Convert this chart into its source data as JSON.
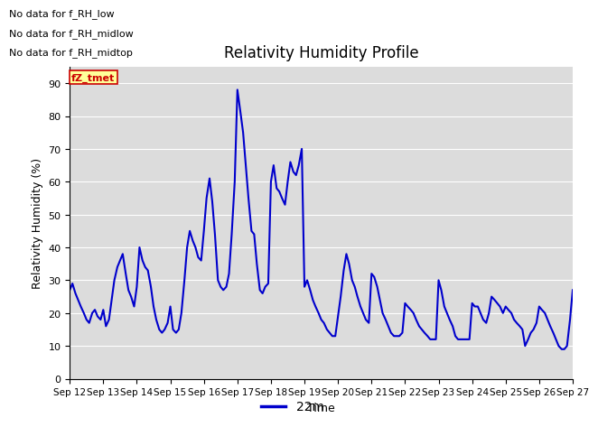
{
  "title": "Relativity Humidity Profile",
  "xlabel": "Time",
  "ylabel": "Relativity Humidity (%)",
  "ylim": [
    0,
    95
  ],
  "yticks": [
    0,
    10,
    20,
    30,
    40,
    50,
    60,
    70,
    80,
    90
  ],
  "line_color": "#0000CC",
  "line_width": 1.5,
  "legend_label": "22m",
  "legend_color": "#0000CC",
  "no_data_texts": [
    "No data for f_RH_low",
    "No data for f_RH_midlow",
    "No data for f_RH_midtop"
  ],
  "fz_tmet_label": "fZ_tmet",
  "fz_tmet_color": "#CC0000",
  "fz_tmet_bg": "#FFFF99",
  "background_color": "#DCDCDC",
  "xtick_labels": [
    "Sep 12",
    "Sep 13",
    "Sep 14",
    "Sep 15",
    "Sep 16",
    "Sep 17",
    "Sep 18",
    "Sep 19",
    "Sep 20",
    "Sep 21",
    "Sep 22",
    "Sep 23",
    "Sep 24",
    "Sep 25",
    "Sep 26",
    "Sep 27"
  ],
  "x_values": [
    12.0,
    12.08,
    12.17,
    12.25,
    12.33,
    12.42,
    12.5,
    12.58,
    12.67,
    12.75,
    12.83,
    12.92,
    13.0,
    13.08,
    13.17,
    13.25,
    13.33,
    13.42,
    13.5,
    13.58,
    13.67,
    13.75,
    13.83,
    13.92,
    14.0,
    14.08,
    14.17,
    14.25,
    14.33,
    14.42,
    14.5,
    14.58,
    14.67,
    14.75,
    14.83,
    14.92,
    15.0,
    15.08,
    15.17,
    15.25,
    15.33,
    15.42,
    15.5,
    15.58,
    15.67,
    15.75,
    15.83,
    15.92,
    16.0,
    16.08,
    16.17,
    16.25,
    16.33,
    16.42,
    16.5,
    16.58,
    16.67,
    16.75,
    16.83,
    16.92,
    17.0,
    17.08,
    17.17,
    17.25,
    17.33,
    17.42,
    17.5,
    17.58,
    17.67,
    17.75,
    17.83,
    17.92,
    18.0,
    18.08,
    18.17,
    18.25,
    18.33,
    18.42,
    18.5,
    18.58,
    18.67,
    18.75,
    18.83,
    18.92,
    19.0,
    19.08,
    19.17,
    19.25,
    19.33,
    19.42,
    19.5,
    19.58,
    19.67,
    19.75,
    19.83,
    19.92,
    20.0,
    20.08,
    20.17,
    20.25,
    20.33,
    20.42,
    20.5,
    20.58,
    20.67,
    20.75,
    20.83,
    20.92,
    21.0,
    21.08,
    21.17,
    21.25,
    21.33,
    21.42,
    21.5,
    21.58,
    21.67,
    21.75,
    21.83,
    21.92,
    22.0,
    22.08,
    22.17,
    22.25,
    22.33,
    22.42,
    22.5,
    22.58,
    22.67,
    22.75,
    22.83,
    22.92,
    23.0,
    23.08,
    23.17,
    23.25,
    23.33,
    23.42,
    23.5,
    23.58,
    23.67,
    23.75,
    23.83,
    23.92,
    24.0,
    24.08,
    24.17,
    24.25,
    24.33,
    24.42,
    24.5,
    24.58,
    24.67,
    24.75,
    24.83,
    24.92,
    25.0,
    25.08,
    25.17,
    25.25,
    25.33,
    25.42,
    25.5,
    25.58,
    25.67,
    25.75,
    25.83,
    25.92,
    26.0,
    26.08,
    26.17,
    26.25,
    26.33,
    26.42,
    26.5,
    26.58,
    26.67,
    26.75,
    26.83,
    26.92,
    27.0
  ],
  "y_values": [
    27,
    29,
    26,
    24,
    22,
    20,
    18,
    17,
    20,
    21,
    19,
    18,
    21,
    16,
    18,
    24,
    30,
    34,
    36,
    38,
    32,
    27,
    25,
    22,
    28,
    40,
    36,
    34,
    33,
    28,
    22,
    18,
    15,
    14,
    15,
    17,
    22,
    15,
    14,
    15,
    20,
    30,
    40,
    45,
    42,
    40,
    37,
    36,
    45,
    55,
    61,
    54,
    44,
    30,
    28,
    27,
    28,
    32,
    44,
    60,
    88,
    82,
    75,
    65,
    55,
    45,
    44,
    35,
    27,
    26,
    28,
    29,
    60,
    65,
    58,
    57,
    55,
    53,
    60,
    66,
    63,
    62,
    65,
    70,
    28,
    30,
    27,
    24,
    22,
    20,
    18,
    17,
    15,
    14,
    13,
    13,
    19,
    25,
    33,
    38,
    35,
    30,
    28,
    25,
    22,
    20,
    18,
    17,
    32,
    31,
    28,
    24,
    20,
    18,
    16,
    14,
    13,
    13,
    13,
    14,
    23,
    22,
    21,
    20,
    18,
    16,
    15,
    14,
    13,
    12,
    12,
    12,
    30,
    27,
    22,
    20,
    18,
    16,
    13,
    12,
    12,
    12,
    12,
    12,
    23,
    22,
    22,
    20,
    18,
    17,
    20,
    25,
    24,
    23,
    22,
    20,
    22,
    21,
    20,
    18,
    17,
    16,
    15,
    10,
    12,
    14,
    15,
    17,
    22,
    21,
    20,
    18,
    16,
    14,
    12,
    10,
    9,
    9,
    10,
    18,
    27
  ],
  "xlim": [
    12,
    27
  ]
}
